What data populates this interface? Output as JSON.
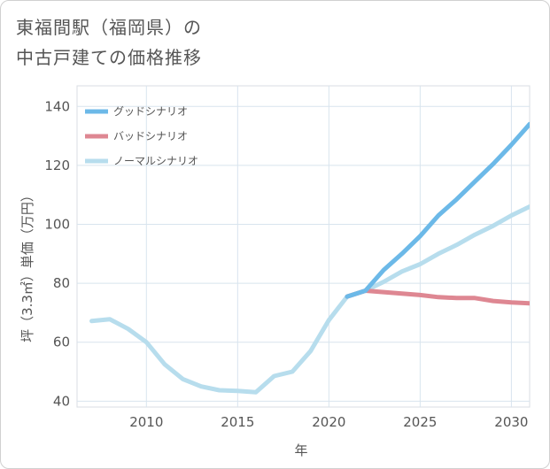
{
  "chart_data": {
    "type": "line",
    "title_lines": [
      "東福間駅（福岡県）の",
      "中古戸建ての価格推移"
    ],
    "xlabel": "年",
    "ylabel": "坪（3.3㎡）単価（万円）",
    "xlim": [
      2006.2,
      2031
    ],
    "ylim": [
      38,
      147
    ],
    "xticks": [
      2010,
      2015,
      2020,
      2025,
      2030
    ],
    "yticks": [
      40,
      60,
      80,
      100,
      120,
      140
    ],
    "grid": true,
    "legend_position": "top-left",
    "series": [
      {
        "name": "グッドシナリオ",
        "color": "#6cb9e8",
        "x": [
          2021,
          2022,
          2023,
          2024,
          2025,
          2026,
          2027,
          2028,
          2029,
          2030,
          2031
        ],
        "values": [
          75.5,
          77.5,
          84.5,
          90,
          96,
          103,
          108.5,
          114.5,
          120.5,
          127,
          134
        ]
      },
      {
        "name": "バッドシナリオ",
        "color": "#de8792",
        "x": [
          2021,
          2022,
          2023,
          2024,
          2025,
          2026,
          2027,
          2028,
          2029,
          2030,
          2031
        ],
        "values": [
          75.5,
          77.5,
          77,
          76.5,
          76,
          75.3,
          75,
          75,
          74,
          73.5,
          73.2
        ]
      },
      {
        "name": "ノーマルシナリオ",
        "color": "#b7dded",
        "x": [
          2007,
          2008,
          2009,
          2010,
          2011,
          2012,
          2013,
          2014,
          2015,
          2016,
          2017,
          2018,
          2019,
          2020,
          2021,
          2022,
          2023,
          2024,
          2025,
          2026,
          2027,
          2028,
          2029,
          2030,
          2031
        ],
        "values": [
          67.2,
          67.8,
          64.5,
          60,
          52.5,
          47.5,
          45,
          43.7,
          43.5,
          43,
          48.5,
          50,
          57,
          67.5,
          75.5,
          77.5,
          80.5,
          84,
          86.5,
          90,
          93,
          96.5,
          99.5,
          103,
          106
        ]
      }
    ]
  }
}
